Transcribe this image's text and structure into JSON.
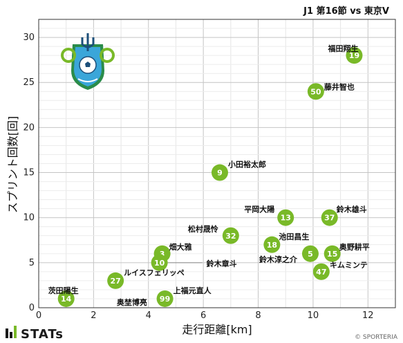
{
  "header": {
    "match_title": "J1 第16節 vs 東京V"
  },
  "footer": {
    "brand": "STATs",
    "credit": "© SPORTERIA"
  },
  "colors": {
    "marker": "#79b928",
    "grid": "#d6d6d6",
    "axis": "#333333"
  },
  "logo": {
    "icon": "shonan-bellmare-crest-icon"
  },
  "chart_data": {
    "type": "scatter",
    "title": "J1 第16節 vs 東京V",
    "xlabel": "走行距離[km]",
    "ylabel": "スプリント回数[回]",
    "xlim": [
      0,
      13
    ],
    "ylim": [
      0,
      32
    ],
    "xticks": [
      0,
      2,
      4,
      6,
      8,
      10,
      12
    ],
    "yticks": [
      0,
      5,
      10,
      15,
      20,
      25,
      30
    ],
    "grid": true,
    "points": [
      {
        "num": "19",
        "name": "福田翔生",
        "x": 11.5,
        "y": 28
      },
      {
        "num": "50",
        "name": "藤井智也",
        "x": 10.1,
        "y": 24
      },
      {
        "num": "9",
        "name": "小田裕太郎",
        "x": 6.6,
        "y": 15
      },
      {
        "num": "13",
        "name": "平岡大陽",
        "x": 9.0,
        "y": 10
      },
      {
        "num": "37",
        "name": "鈴木雄斗",
        "x": 10.6,
        "y": 10
      },
      {
        "num": "32",
        "name": "松村晟怜",
        "x": 7.0,
        "y": 8
      },
      {
        "num": "18",
        "name": "池田昌生",
        "x": 8.5,
        "y": 7
      },
      {
        "num": "5",
        "name": "鈴木淳之介",
        "x": 9.9,
        "y": 6
      },
      {
        "num": "15",
        "name": "奥野耕平",
        "x": 10.7,
        "y": 6
      },
      {
        "num": "47",
        "name": "キムミンテ",
        "x": 10.3,
        "y": 4
      },
      {
        "num": "3",
        "name": "畑大雅",
        "x": 4.5,
        "y": 6
      },
      {
        "num": "10",
        "name": "鈴木章斗",
        "x": 4.4,
        "y": 5
      },
      {
        "num": "27",
        "name": "ルイスフェリッペ",
        "x": 2.8,
        "y": 3
      },
      {
        "num": "99",
        "name": "上福元直人",
        "x": 4.6,
        "y": 1
      },
      {
        "num": "14",
        "name": "茨田陽生",
        "x": 1.0,
        "y": 1
      },
      {
        "num": "",
        "name": "奥埜博亮",
        "x": 3.6,
        "y": 0
      }
    ]
  }
}
